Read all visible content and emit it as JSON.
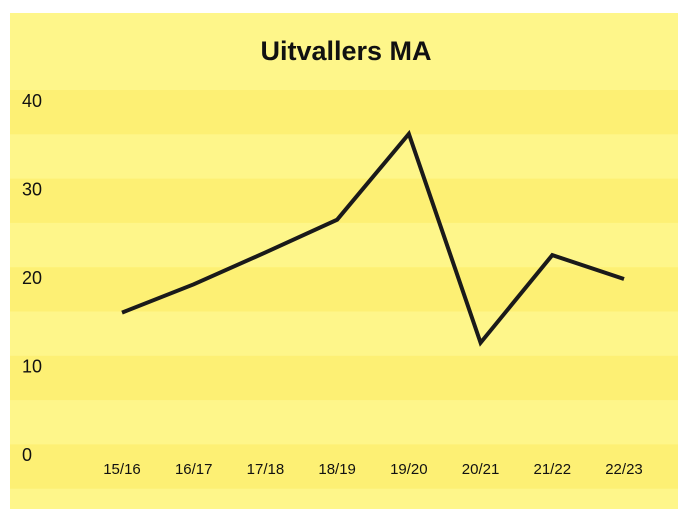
{
  "chart_data": {
    "type": "line",
    "title": "Uitvallers MA",
    "categories": [
      "15/16",
      "16/17",
      "17/18",
      "18/19",
      "19/20",
      "20/21",
      "21/22",
      "22/23"
    ],
    "series": [
      {
        "name": "Uitvallers MA",
        "color": "#1a1a1a",
        "values": [
          16.2,
          19.4,
          23.0,
          26.7,
          36.4,
          12.8,
          22.7,
          20.0
        ]
      }
    ],
    "ylim": [
      0,
      40
    ],
    "yticks": [
      0,
      10,
      20,
      30,
      40
    ]
  }
}
